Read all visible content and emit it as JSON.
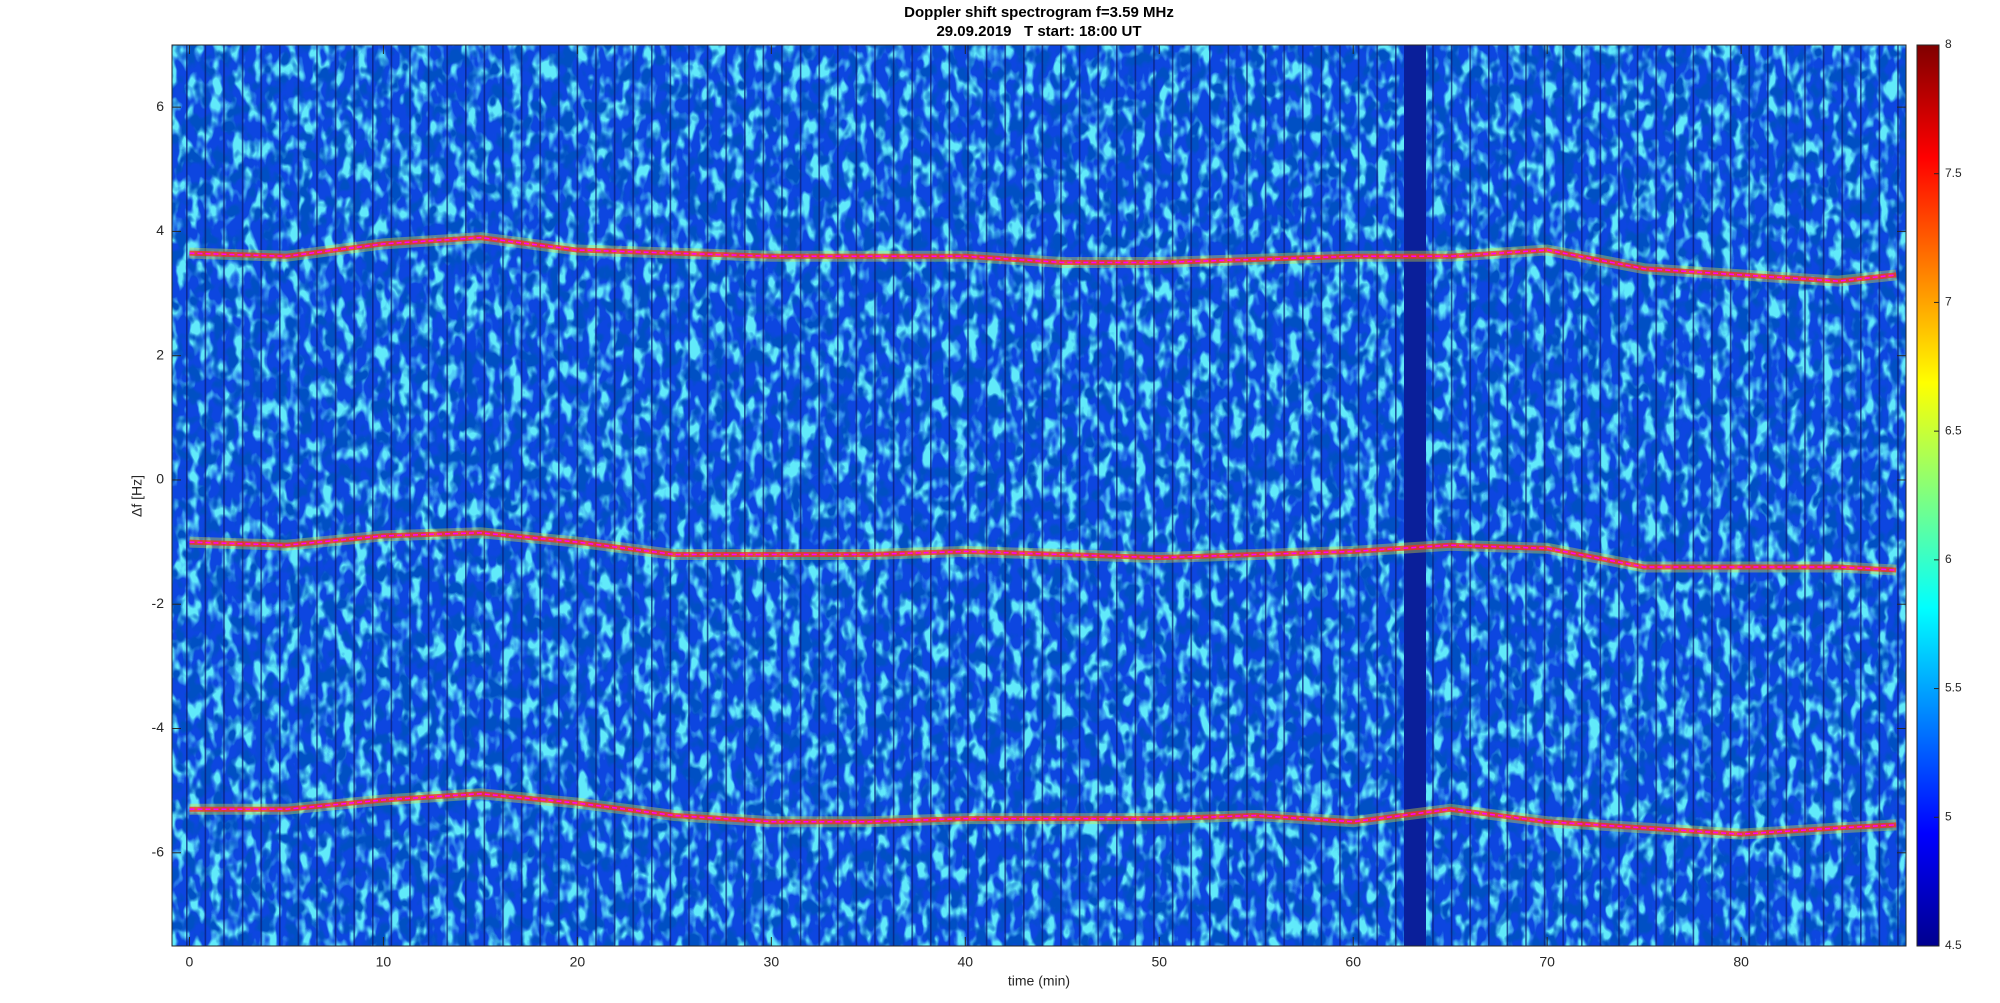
{
  "chart_data": {
    "type": "spectrogram",
    "title": "Doppler shift spectrogram f=3.59 MHz",
    "subtitle": "29.09.2019   T start: 18:00 UT",
    "x_label": "time (min)",
    "y_label": "Δf [Hz]",
    "xlim": [
      -0.9,
      88.5
    ],
    "ylim": [
      -7.5,
      7
    ],
    "xticks": [
      0,
      10,
      20,
      30,
      40,
      50,
      60,
      70,
      80
    ],
    "yticks": [
      -6,
      -4,
      -2,
      0,
      2,
      4,
      6
    ],
    "colormap": "jet",
    "clim": [
      4.5,
      8
    ],
    "cticks": [
      4.5,
      5,
      5.5,
      6,
      6.5,
      7,
      7.5,
      8
    ],
    "x": [
      0,
      5,
      10,
      15,
      20,
      25,
      30,
      35,
      40,
      45,
      50,
      55,
      60,
      65,
      70,
      75,
      80,
      85,
      88
    ],
    "series": [
      {
        "color": "#ff00ff",
        "values": [
          3.65,
          3.6,
          3.8,
          3.9,
          3.7,
          3.65,
          3.6,
          3.6,
          3.6,
          3.5,
          3.5,
          3.55,
          3.6,
          3.6,
          3.7,
          3.4,
          3.3,
          3.2,
          3.3
        ]
      },
      {
        "color": "#ff00ff",
        "values": [
          -1.0,
          -1.05,
          -0.9,
          -0.85,
          -1.0,
          -1.2,
          -1.2,
          -1.2,
          -1.15,
          -1.2,
          -1.25,
          -1.2,
          -1.15,
          -1.05,
          -1.1,
          -1.4,
          -1.4,
          -1.4,
          -1.45
        ]
      },
      {
        "color": "#ff00ff",
        "values": [
          -5.3,
          -5.3,
          -5.15,
          -5.05,
          -5.2,
          -5.4,
          -5.5,
          -5.5,
          -5.45,
          -5.45,
          -5.45,
          -5.4,
          -5.5,
          -5.3,
          -5.5,
          -5.6,
          -5.7,
          -5.6,
          -5.55
        ]
      }
    ]
  }
}
